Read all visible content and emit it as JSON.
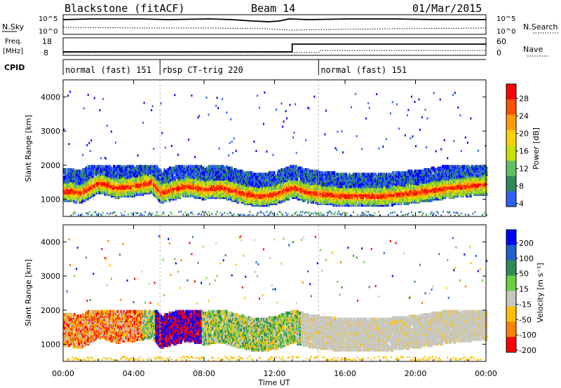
{
  "header": {
    "station": "Blackstone (fitACF)",
    "beam": "Beam 14",
    "date": "01/Mar/2015"
  },
  "summary_panels": {
    "nsky_label": "N.Sky",
    "nsky_ticks": [
      "10^5",
      "10^0"
    ],
    "nsearch_label": "N.Search",
    "nsearch_ticks": [
      "10^5",
      "10^0"
    ],
    "freq_label": "Freq.",
    "freq_unit": "[MHz]",
    "freq_ticks": [
      "18",
      "8"
    ],
    "nave_label": "Nave",
    "nave_ticks": [
      "60",
      "0"
    ],
    "cpid_label": "CPID",
    "cpid_segments": [
      {
        "label": "normal (fast) 151",
        "start_h": 0,
        "end_h": 5.5
      },
      {
        "label": "rbsp CT-trig 220",
        "start_h": 5.5,
        "end_h": 14.5
      },
      {
        "label": "normal (fast) 151",
        "start_h": 14.5,
        "end_h": 24
      }
    ],
    "freq_step_h": 13.0
  },
  "power_panel": {
    "ylabel": "Slant Range [km]",
    "yticks": [
      "4000",
      "3000",
      "2000",
      "1000"
    ],
    "colorbar_label": "Power [dB]",
    "colorbar_ticks": [
      "28",
      "24",
      "20",
      "16",
      "12",
      "8",
      "4"
    ],
    "colors": [
      "#ff0000",
      "#ff5000",
      "#ff9a00",
      "#ffd000",
      "#c8e000",
      "#60c060",
      "#2e8b57",
      "#3060ff",
      "#0000ff"
    ]
  },
  "velocity_panel": {
    "ylabel": "Slant Range [km]",
    "yticks": [
      "4000",
      "3000",
      "2000",
      "1000"
    ],
    "colorbar_label": "Velocity [m s⁻¹]",
    "colorbar_ticks": [
      "200",
      "100",
      "50",
      "15",
      "-15",
      "-50",
      "-100",
      "-200"
    ],
    "colors": [
      "#0000ff",
      "#1f5fd0",
      "#2e8b57",
      "#6ad040",
      "#c8c8c0",
      "#ffc000",
      "#ff8000",
      "#ff0000"
    ]
  },
  "time_axis": {
    "xlabel": "Time UT",
    "xticks": [
      "00:00",
      "04:00",
      "08:00",
      "12:00",
      "16:00",
      "20:00",
      "00:00"
    ]
  },
  "chart_data": [
    {
      "type": "heatmap",
      "title": "Power",
      "xlabel": "Time UT",
      "ylabel": "Slant Range [km]",
      "xlim": [
        0,
        24
      ],
      "ylim": [
        500,
        4500
      ],
      "colorbar": {
        "label": "Power [dB]",
        "range": [
          0,
          32
        ]
      },
      "band_center_km": [
        {
          "x": 0.0,
          "y": 1250
        },
        {
          "x": 1.0,
          "y": 1200
        },
        {
          "x": 2.0,
          "y": 1500
        },
        {
          "x": 3.0,
          "y": 1350
        },
        {
          "x": 4.0,
          "y": 1400
        },
        {
          "x": 5.0,
          "y": 1500
        },
        {
          "x": 5.5,
          "y": 1200
        },
        {
          "x": 7.0,
          "y": 1400
        },
        {
          "x": 8.0,
          "y": 1300
        },
        {
          "x": 9.0,
          "y": 1350
        },
        {
          "x": 10.0,
          "y": 1200
        },
        {
          "x": 11.0,
          "y": 1100
        },
        {
          "x": 12.0,
          "y": 1150
        },
        {
          "x": 13.0,
          "y": 1350
        },
        {
          "x": 14.0,
          "y": 1200
        },
        {
          "x": 16.0,
          "y": 1100
        },
        {
          "x": 18.0,
          "y": 1100
        },
        {
          "x": 20.0,
          "y": 1200
        },
        {
          "x": 22.0,
          "y": 1350
        },
        {
          "x": 24.0,
          "y": 1450
        }
      ]
    },
    {
      "type": "heatmap",
      "title": "Velocity",
      "xlabel": "Time UT",
      "ylabel": "Slant Range [km]",
      "xlim": [
        0,
        24
      ],
      "ylim": [
        500,
        4500
      ],
      "colorbar": {
        "label": "Velocity [m s⁻¹]",
        "range": [
          -200,
          200
        ]
      }
    }
  ]
}
